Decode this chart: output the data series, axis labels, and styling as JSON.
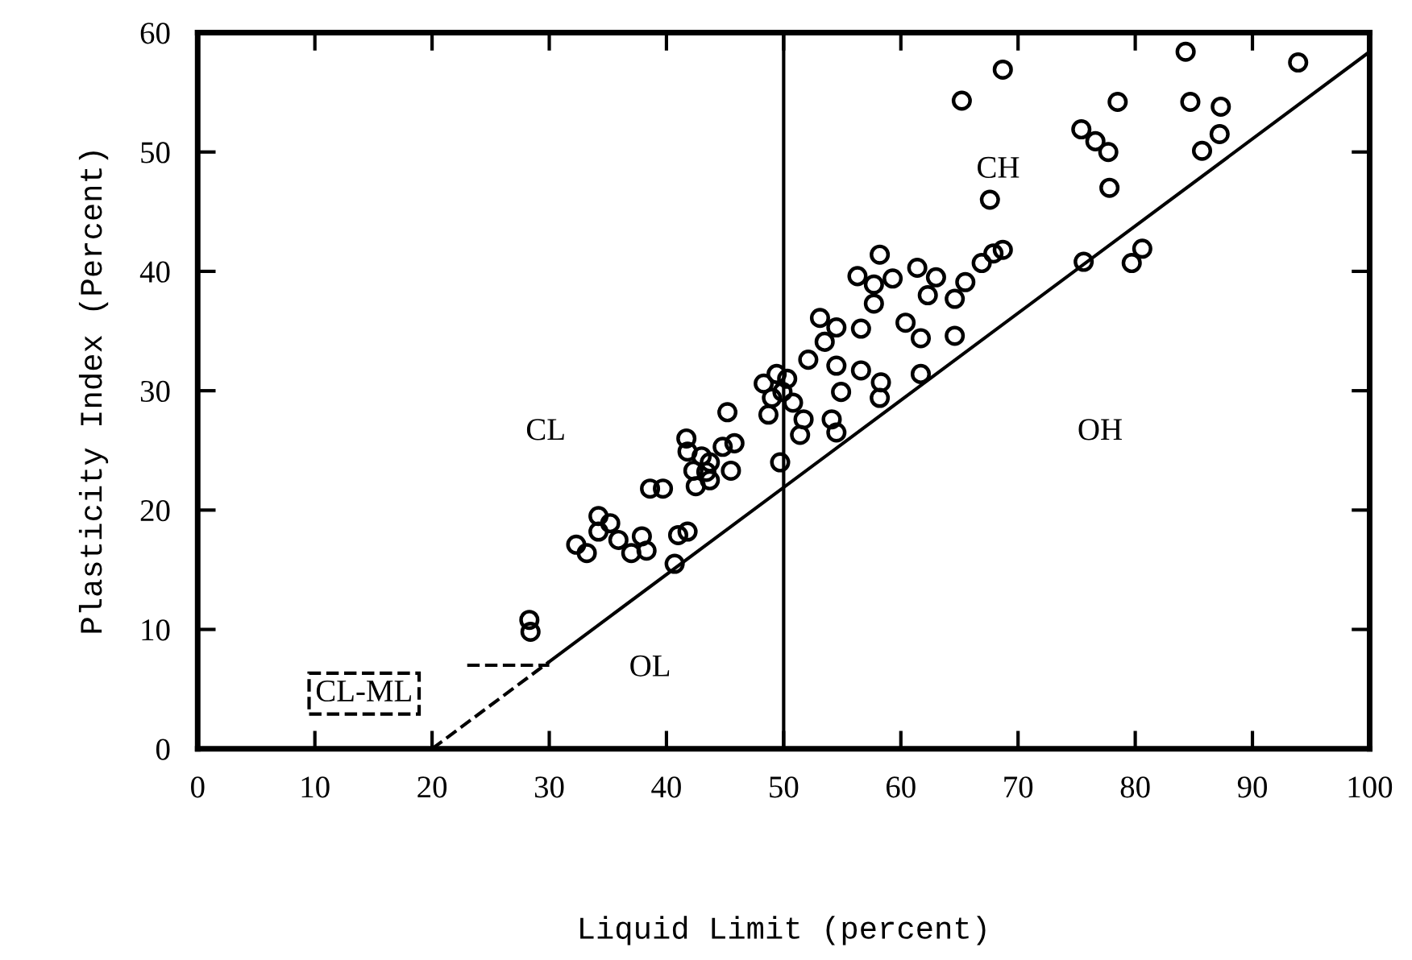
{
  "chart_data": {
    "type": "scatter",
    "xlabel": "Liquid Limit (percent)",
    "ylabel": "Plasticity Index (Percent)",
    "xlim": [
      0,
      100
    ],
    "ylim": [
      0,
      60
    ],
    "xticks": [
      0,
      10,
      20,
      30,
      40,
      50,
      60,
      70,
      80,
      90,
      100
    ],
    "yticks": [
      0,
      10,
      20,
      30,
      40,
      50,
      60
    ],
    "grid": false,
    "legend": false,
    "series": [
      {
        "marker": "circle",
        "color": "#000000",
        "x": [
          28.3,
          28.4,
          34.2,
          35.2,
          34.2,
          35.9,
          37.9,
          38.3,
          37.0,
          32.3,
          33.2,
          41.0,
          41.8,
          40.7,
          38.6,
          39.7,
          41.7,
          41.8,
          43.0,
          43.7,
          42.3,
          43.4,
          42.5,
          43.7,
          44.8,
          45.8,
          45.5,
          45.2,
          49.7,
          49.4,
          50.3,
          48.3,
          49.0,
          49.9,
          50.8,
          48.7,
          51.7,
          51.4,
          54.1,
          54.5,
          52.1,
          54.5,
          56.6,
          58.3,
          54.9,
          58.2,
          61.7,
          53.1,
          54.5,
          53.5,
          56.6,
          60.4,
          61.7,
          64.6,
          58.2,
          56.3,
          57.7,
          59.3,
          57.7,
          61.4,
          63.0,
          62.3,
          64.6,
          65.5,
          66.9,
          67.9,
          68.7,
          67.6,
          65.2,
          68.7,
          75.6,
          79.7,
          80.6,
          77.8,
          75.4,
          76.6,
          77.7,
          78.5,
          84.3,
          84.7,
          87.3,
          85.7,
          87.2,
          93.9
        ],
        "values": [
          10.8,
          9.8,
          19.5,
          18.9,
          18.2,
          17.5,
          17.8,
          16.6,
          16.4,
          17.1,
          16.4,
          17.9,
          18.2,
          15.5,
          21.8,
          21.8,
          26.0,
          24.9,
          24.5,
          24.0,
          23.3,
          23.2,
          22.0,
          22.5,
          25.3,
          25.6,
          23.3,
          28.2,
          24.0,
          31.4,
          31.0,
          30.6,
          29.4,
          29.9,
          29.0,
          28.0,
          27.6,
          26.3,
          27.6,
          26.5,
          32.6,
          32.1,
          31.7,
          30.7,
          29.9,
          29.4,
          31.4,
          36.1,
          35.3,
          34.1,
          35.2,
          35.7,
          34.4,
          34.6,
          41.4,
          39.6,
          38.9,
          39.4,
          37.3,
          40.3,
          39.5,
          38.0,
          37.7,
          39.1,
          40.7,
          41.5,
          41.8,
          46.0,
          54.3,
          56.9,
          40.8,
          40.7,
          41.9,
          47.0,
          51.9,
          50.9,
          50.0,
          54.2,
          58.4,
          54.2,
          53.8,
          50.1,
          51.5,
          57.5
        ]
      },
      {
        "type": "line",
        "line_style": "solid",
        "color": "#000000",
        "x": [
          30,
          100
        ],
        "values": [
          7.3,
          58.4
        ]
      },
      {
        "type": "line",
        "line_style": "dashed",
        "color": "#000000",
        "x": [
          20,
          30
        ],
        "values": [
          0,
          7.3
        ]
      },
      {
        "type": "line",
        "line_style": "dashed",
        "color": "#000000",
        "x": [
          23,
          30
        ],
        "values": [
          7,
          7
        ]
      }
    ],
    "ref_lines": [
      {
        "axis": "x",
        "value": 50,
        "color": "#000000",
        "line_style": "solid"
      }
    ],
    "annotations": [
      "CL",
      "CH",
      "OH",
      "OL",
      "CL-ML"
    ]
  }
}
